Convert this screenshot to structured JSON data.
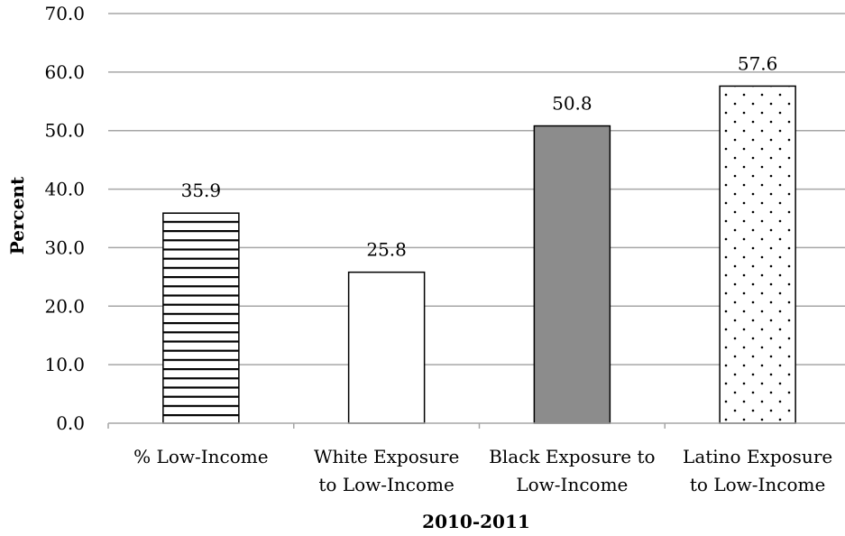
{
  "chart_data": {
    "type": "bar",
    "title": "",
    "xlabel": "2010-2011",
    "ylabel": "Percent",
    "ylim": [
      0,
      70
    ],
    "yticks": [
      "0.0",
      "10.0",
      "20.0",
      "30.0",
      "40.0",
      "50.0",
      "60.0",
      "70.0"
    ],
    "grid": true,
    "categories": [
      [
        "% Low-Income"
      ],
      [
        "White Exposure",
        "to Low-Income"
      ],
      [
        "Black Exposure to",
        "Low-Income"
      ],
      [
        "Latino Exposure",
        "to Low-Income"
      ]
    ],
    "values": [
      35.9,
      25.8,
      50.8,
      57.6
    ],
    "data_labels": [
      "35.9",
      "25.8",
      "50.8",
      "57.6"
    ],
    "bar_styles": [
      "horizontal-stripes",
      "solid-white",
      "solid-gray",
      "dotted"
    ],
    "colors": {
      "gray_fill": "#8c8c8c",
      "grid": "#a6a6a6",
      "outline": "#000000"
    }
  }
}
